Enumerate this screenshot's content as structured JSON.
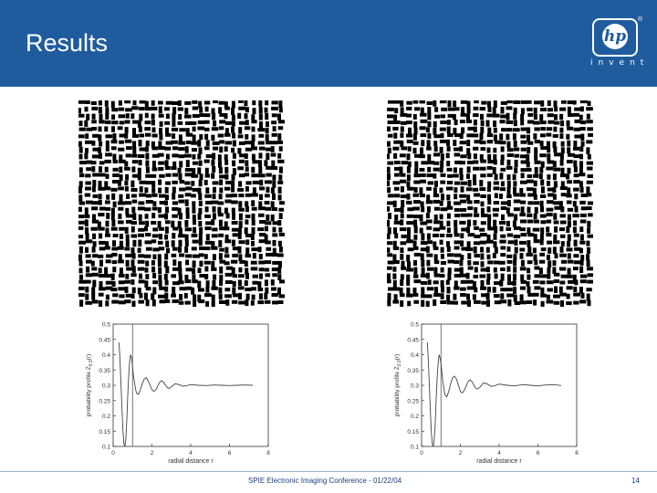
{
  "slide": {
    "title": "Results",
    "footer": "SPIE Electronic Imaging Conference - 01/22/04",
    "page_number": "14"
  },
  "logo": {
    "mark": "hp",
    "registered": "®",
    "tagline": "invent"
  },
  "colors": {
    "header": "#1f5c9e",
    "text_on_header": "#ffffff",
    "footer_text": "#1f3f7a"
  },
  "chart_data": [
    {
      "type": "line",
      "xlabel": "radial distance r",
      "ylabel": "probability profile Z",
      "ylabel_sub": "0.3",
      "ylabel_suffix": "(r)",
      "xlim": [
        0,
        8
      ],
      "ylim": [
        0.1,
        0.5
      ],
      "xticks": [
        "0",
        "2",
        "4",
        "6",
        "8"
      ],
      "yticks": [
        "0.1",
        "0.15",
        "0.2",
        "0.25",
        "0.3",
        "0.35",
        "0.4",
        "0.45",
        "0.5"
      ],
      "vline": 1.0,
      "x": [
        0.3,
        0.35,
        0.4,
        0.45,
        0.5,
        0.55,
        0.6,
        0.65,
        0.7,
        0.75,
        0.8,
        0.85,
        0.9,
        0.95,
        1.0,
        1.05,
        1.1,
        1.15,
        1.2,
        1.3,
        1.4,
        1.5,
        1.6,
        1.7,
        1.8,
        1.9,
        2.0,
        2.1,
        2.2,
        2.3,
        2.4,
        2.5,
        2.6,
        2.7,
        2.8,
        2.9,
        3.0,
        3.2,
        3.4,
        3.6,
        3.8,
        4.0,
        4.4,
        4.8,
        5.2,
        5.6,
        6.0,
        6.4,
        6.8,
        7.2
      ],
      "y": [
        0.44,
        0.39,
        0.31,
        0.23,
        0.16,
        0.11,
        0.1,
        0.12,
        0.18,
        0.26,
        0.33,
        0.38,
        0.4,
        0.39,
        0.36,
        0.33,
        0.31,
        0.29,
        0.275,
        0.27,
        0.285,
        0.305,
        0.32,
        0.325,
        0.315,
        0.3,
        0.285,
        0.28,
        0.285,
        0.298,
        0.31,
        0.315,
        0.31,
        0.3,
        0.292,
        0.29,
        0.295,
        0.305,
        0.302,
        0.297,
        0.299,
        0.302,
        0.3,
        0.299,
        0.301,
        0.3,
        0.299,
        0.3,
        0.301,
        0.3
      ]
    },
    {
      "type": "line",
      "xlabel": "radial distance r",
      "ylabel": "probability profile Z",
      "ylabel_sub": "2.0",
      "ylabel_suffix": "(r)",
      "xlim": [
        0,
        8
      ],
      "ylim": [
        0.1,
        0.5
      ],
      "xticks": [
        "0",
        "2",
        "4",
        "6",
        "8"
      ],
      "yticks": [
        "0.1",
        "0.15",
        "0.2",
        "0.25",
        "0.3",
        "0.35",
        "0.4",
        "0.45",
        "0.5"
      ],
      "vline": 1.0,
      "x": [
        0.3,
        0.35,
        0.4,
        0.45,
        0.5,
        0.55,
        0.6,
        0.65,
        0.7,
        0.75,
        0.8,
        0.85,
        0.9,
        0.95,
        1.0,
        1.05,
        1.1,
        1.15,
        1.2,
        1.3,
        1.4,
        1.5,
        1.6,
        1.7,
        1.8,
        1.9,
        2.0,
        2.1,
        2.2,
        2.3,
        2.4,
        2.5,
        2.6,
        2.7,
        2.8,
        2.9,
        3.0,
        3.2,
        3.4,
        3.6,
        3.8,
        4.0,
        4.4,
        4.8,
        5.2,
        5.6,
        6.0,
        6.4,
        6.8,
        7.2
      ],
      "y": [
        0.44,
        0.38,
        0.3,
        0.22,
        0.15,
        0.11,
        0.1,
        0.12,
        0.17,
        0.25,
        0.32,
        0.37,
        0.4,
        0.39,
        0.37,
        0.34,
        0.31,
        0.29,
        0.27,
        0.262,
        0.28,
        0.305,
        0.325,
        0.33,
        0.32,
        0.3,
        0.28,
        0.275,
        0.283,
        0.298,
        0.312,
        0.318,
        0.312,
        0.3,
        0.29,
        0.288,
        0.293,
        0.308,
        0.304,
        0.296,
        0.299,
        0.304,
        0.3,
        0.298,
        0.302,
        0.3,
        0.298,
        0.301,
        0.302,
        0.299
      ]
    }
  ]
}
